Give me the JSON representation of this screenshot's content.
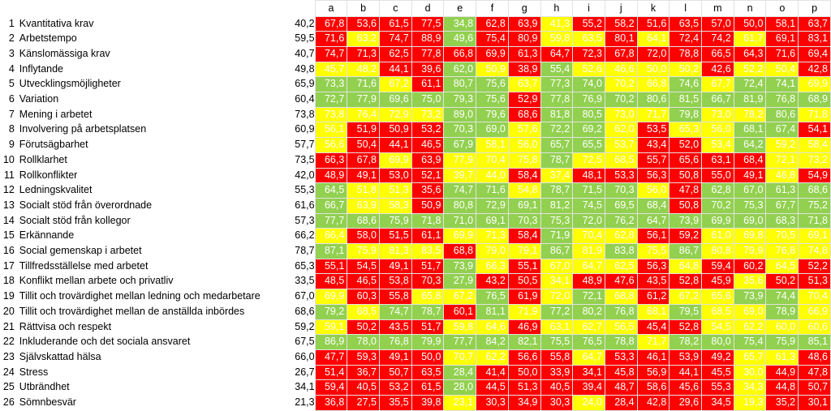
{
  "columns": [
    "a",
    "b",
    "c",
    "d",
    "e",
    "f",
    "g",
    "h",
    "i",
    "j",
    "k",
    "l",
    "m",
    "n",
    "o",
    "p"
  ],
  "rows": [
    {
      "num": "1",
      "label": "Kvantitativa krav",
      "total": "40,2",
      "vals": [
        "67,8",
        "53,6",
        "61,5",
        "77,5",
        "34,8",
        "62,8",
        "63,9",
        "41,3",
        "55,2",
        "58,2",
        "51,6",
        "63,5",
        "57,0",
        "50,0",
        "58,1",
        "63,7"
      ],
      "colors": [
        "r",
        "r",
        "r",
        "r",
        "g",
        "r",
        "r",
        "y",
        "r",
        "r",
        "r",
        "r",
        "r",
        "r",
        "r",
        "r"
      ]
    },
    {
      "num": "2",
      "label": "Arbetstempo",
      "total": "59,5",
      "vals": [
        "71,6",
        "63,2",
        "74,7",
        "88,9",
        "49,6",
        "75,4",
        "80,9",
        "59,8",
        "63,5",
        "80,1",
        "64,1",
        "72,4",
        "74,2",
        "61,7",
        "69,1",
        "83,1"
      ],
      "colors": [
        "r",
        "y",
        "r",
        "r",
        "g",
        "r",
        "r",
        "y",
        "y",
        "r",
        "y",
        "r",
        "r",
        "y",
        "r",
        "r"
      ]
    },
    {
      "num": "3",
      "label": "Känslomässiga krav",
      "total": "40,7",
      "vals": [
        "74,7",
        "71,3",
        "62,5",
        "77,8",
        "66,8",
        "69,9",
        "61,3",
        "64,7",
        "72,3",
        "67,8",
        "72,0",
        "78,8",
        "66,5",
        "64,3",
        "71,6",
        "69,4"
      ],
      "colors": [
        "r",
        "r",
        "r",
        "r",
        "r",
        "r",
        "r",
        "r",
        "r",
        "r",
        "r",
        "r",
        "r",
        "r",
        "r",
        "r"
      ]
    },
    {
      "num": "4",
      "label": "Inflytande",
      "total": "49,8",
      "vals": [
        "45,7",
        "48,2",
        "44,1",
        "39,6",
        "62,0",
        "50,9",
        "38,9",
        "55,4",
        "52,6",
        "46,6",
        "50,0",
        "50,2",
        "42,6",
        "52,2",
        "50,4",
        "42,8"
      ],
      "colors": [
        "y",
        "y",
        "r",
        "r",
        "g",
        "y",
        "r",
        "g",
        "y",
        "y",
        "y",
        "y",
        "r",
        "y",
        "y",
        "r"
      ]
    },
    {
      "num": "5",
      "label": "Utvecklingsmöjligheter",
      "total": "65,9",
      "vals": [
        "73,3",
        "71,6",
        "67,2",
        "61,1",
        "80,7",
        "75,6",
        "63,7",
        "77,3",
        "74,0",
        "70,2",
        "66,8",
        "74,6",
        "67,7",
        "72,4",
        "74,1",
        "69,9"
      ],
      "colors": [
        "g",
        "g",
        "y",
        "r",
        "g",
        "g",
        "y",
        "g",
        "g",
        "y",
        "y",
        "g",
        "y",
        "g",
        "g",
        "y"
      ]
    },
    {
      "num": "6",
      "label": "Variation",
      "total": "60,4",
      "vals": [
        "72,7",
        "77,9",
        "69,6",
        "75,0",
        "79,3",
        "75,6",
        "52,9",
        "77,8",
        "76,9",
        "70,2",
        "80,6",
        "81,5",
        "66,7",
        "81,9",
        "76,8",
        "68,9"
      ],
      "colors": [
        "g",
        "g",
        "g",
        "g",
        "g",
        "g",
        "r",
        "g",
        "g",
        "g",
        "g",
        "g",
        "g",
        "g",
        "g",
        "g"
      ]
    },
    {
      "num": "7",
      "label": "Mening i arbetet",
      "total": "73,8",
      "vals": [
        "73,8",
        "76,4",
        "72,9",
        "73,2",
        "89,0",
        "79,6",
        "68,6",
        "81,8",
        "80,5",
        "73,0",
        "71,7",
        "79,8",
        "73,0",
        "78,2",
        "80,6",
        "71,8"
      ],
      "colors": [
        "y",
        "y",
        "y",
        "y",
        "g",
        "g",
        "r",
        "g",
        "g",
        "y",
        "y",
        "g",
        "y",
        "y",
        "g",
        "y"
      ]
    },
    {
      "num": "8",
      "label": "Involvering på arbetsplatsen",
      "total": "60,9",
      "vals": [
        "56,1",
        "51,9",
        "50,9",
        "53,2",
        "70,3",
        "69,0",
        "57,6",
        "72,2",
        "69,2",
        "62,0",
        "53,5",
        "65,3",
        "56,0",
        "68,1",
        "67,4",
        "54,1"
      ],
      "colors": [
        "y",
        "r",
        "r",
        "r",
        "g",
        "g",
        "y",
        "g",
        "g",
        "y",
        "r",
        "y",
        "y",
        "g",
        "g",
        "r"
      ]
    },
    {
      "num": "9",
      "label": "Förutsägbarhet",
      "total": "57,7",
      "vals": [
        "56,6",
        "50,4",
        "44,1",
        "46,5",
        "67,9",
        "58,1",
        "56,0",
        "65,7",
        "65,5",
        "53,7",
        "43,4",
        "52,0",
        "53,4",
        "64,2",
        "59,2",
        "58,4"
      ],
      "colors": [
        "y",
        "r",
        "r",
        "r",
        "g",
        "y",
        "y",
        "g",
        "g",
        "y",
        "r",
        "r",
        "y",
        "g",
        "y",
        "y"
      ]
    },
    {
      "num": "10",
      "label": "Rollklarhet",
      "total": "73,5",
      "vals": [
        "66,3",
        "67,8",
        "69,9",
        "63,9",
        "77,9",
        "70,4",
        "75,8",
        "78,7",
        "72,5",
        "68,5",
        "55,7",
        "65,6",
        "63,1",
        "68,4",
        "72,1",
        "73,2"
      ],
      "colors": [
        "r",
        "r",
        "y",
        "r",
        "y",
        "y",
        "y",
        "g",
        "y",
        "y",
        "r",
        "r",
        "r",
        "r",
        "y",
        "y"
      ]
    },
    {
      "num": "11",
      "label": "Rollkonflikter",
      "total": "42,0",
      "vals": [
        "48,9",
        "49,1",
        "53,0",
        "52,1",
        "39,7",
        "44,0",
        "58,4",
        "37,4",
        "48,1",
        "53,3",
        "56,3",
        "50,8",
        "55,0",
        "49,1",
        "46,8",
        "54,9"
      ],
      "colors": [
        "r",
        "r",
        "r",
        "r",
        "y",
        "y",
        "r",
        "y",
        "r",
        "r",
        "r",
        "r",
        "r",
        "r",
        "y",
        "r"
      ]
    },
    {
      "num": "12",
      "label": "Ledningskvalitet",
      "total": "55,3",
      "vals": [
        "64,5",
        "51,8",
        "51,3",
        "35,6",
        "74,7",
        "71,6",
        "54,8",
        "78,7",
        "71,5",
        "70,3",
        "56,0",
        "47,8",
        "62,8",
        "67,0",
        "61,3",
        "68,6"
      ],
      "colors": [
        "g",
        "y",
        "y",
        "r",
        "g",
        "g",
        "y",
        "g",
        "g",
        "g",
        "y",
        "r",
        "g",
        "g",
        "g",
        "g"
      ]
    },
    {
      "num": "13",
      "label": "Socialt stöd från överordnade",
      "total": "61,6",
      "vals": [
        "66,7",
        "63,9",
        "58,3",
        "50,9",
        "80,8",
        "72,9",
        "69,1",
        "81,2",
        "74,5",
        "69,5",
        "68,4",
        "50,8",
        "70,2",
        "75,3",
        "67,7",
        "75,2"
      ],
      "colors": [
        "g",
        "y",
        "y",
        "r",
        "g",
        "g",
        "g",
        "g",
        "g",
        "g",
        "g",
        "r",
        "g",
        "g",
        "g",
        "g"
      ]
    },
    {
      "num": "14",
      "label": "Socialt stöd från kollegor",
      "total": "57,3",
      "vals": [
        "77,7",
        "68,6",
        "75,9",
        "71,8",
        "71,0",
        "69,1",
        "70,3",
        "75,3",
        "72,0",
        "76,2",
        "64,7",
        "73,9",
        "69,9",
        "69,0",
        "68,3",
        "71,8"
      ],
      "colors": [
        "g",
        "g",
        "g",
        "g",
        "g",
        "g",
        "g",
        "g",
        "g",
        "g",
        "g",
        "g",
        "g",
        "g",
        "g",
        "g"
      ]
    },
    {
      "num": "15",
      "label": "Erkännande",
      "total": "66,2",
      "vals": [
        "66,4",
        "58,0",
        "51,5",
        "61,1",
        "69,9",
        "71,3",
        "58,4",
        "71,9",
        "70,4",
        "62,8",
        "56,1",
        "59,2",
        "61,0",
        "69,8",
        "70,5",
        "69,1"
      ],
      "colors": [
        "y",
        "r",
        "r",
        "r",
        "y",
        "y",
        "r",
        "g",
        "y",
        "y",
        "r",
        "r",
        "y",
        "y",
        "y",
        "y"
      ]
    },
    {
      "num": "16",
      "label": "Social gemenskap i arbetet",
      "total": "78,7",
      "vals": [
        "87,1",
        "75,9",
        "81,3",
        "83,5",
        "68,8",
        "79,0",
        "79,1",
        "86,7",
        "81,9",
        "83,8",
        "75,5",
        "86,7",
        "80,8",
        "79,9",
        "76,8",
        "74,8"
      ],
      "colors": [
        "g",
        "y",
        "y",
        "y",
        "r",
        "y",
        "y",
        "g",
        "y",
        "g",
        "y",
        "g",
        "y",
        "y",
        "y",
        "y"
      ]
    },
    {
      "num": "17",
      "label": "Tillfredsställelse med arbetet",
      "total": "65,3",
      "vals": [
        "55,1",
        "54,5",
        "49,1",
        "51,7",
        "73,9",
        "66,3",
        "55,1",
        "67,0",
        "64,7",
        "62,5",
        "56,3",
        "64,8",
        "59,4",
        "60,2",
        "64,5",
        "52,2"
      ],
      "colors": [
        "r",
        "r",
        "r",
        "r",
        "g",
        "y",
        "r",
        "y",
        "y",
        "y",
        "r",
        "y",
        "r",
        "r",
        "y",
        "r"
      ]
    },
    {
      "num": "18",
      "label": "Konflikt mellan arbete och privatliv",
      "total": "33,5",
      "vals": [
        "48,5",
        "46,5",
        "53,8",
        "70,3",
        "27,9",
        "43,2",
        "50,5",
        "34,1",
        "48,9",
        "47,6",
        "43,5",
        "52,8",
        "45,9",
        "35,6",
        "50,2",
        "51,3"
      ],
      "colors": [
        "r",
        "r",
        "r",
        "r",
        "g",
        "r",
        "r",
        "y",
        "r",
        "r",
        "r",
        "r",
        "r",
        "y",
        "r",
        "r"
      ]
    },
    {
      "num": "19",
      "label": "Tillit och trovärdighet mellan ledning och medarbetare",
      "total": "67,0",
      "vals": [
        "69,9",
        "60,3",
        "55,8",
        "65,8",
        "67,2",
        "76,5",
        "61,9",
        "72,0",
        "72,1",
        "68,8",
        "61,2",
        "67,2",
        "65,6",
        "73,9",
        "74,4",
        "70,4"
      ],
      "colors": [
        "y",
        "r",
        "r",
        "y",
        "y",
        "g",
        "r",
        "y",
        "g",
        "y",
        "r",
        "y",
        "y",
        "g",
        "g",
        "y"
      ]
    },
    {
      "num": "20",
      "label": "Tillit och trovärdighet mellan de anställda inbördes",
      "total": "68,6",
      "vals": [
        "79,2",
        "68,5",
        "74,7",
        "78,7",
        "60,1",
        "81,1",
        "71,9",
        "77,2",
        "80,2",
        "76,8",
        "68,1",
        "79,5",
        "68,5",
        "69,0",
        "78,9",
        "66,9"
      ],
      "colors": [
        "g",
        "y",
        "g",
        "g",
        "r",
        "g",
        "y",
        "g",
        "g",
        "g",
        "y",
        "g",
        "y",
        "y",
        "g",
        "y"
      ]
    },
    {
      "num": "21",
      "label": "Rättvisa och respekt",
      "total": "59,2",
      "vals": [
        "59,1",
        "50,2",
        "43,5",
        "51,7",
        "59,8",
        "64,6",
        "46,9",
        "63,1",
        "62,7",
        "56,5",
        "45,4",
        "52,8",
        "54,5",
        "62,2",
        "60,0",
        "60,6"
      ],
      "colors": [
        "y",
        "r",
        "r",
        "r",
        "y",
        "y",
        "r",
        "y",
        "y",
        "y",
        "r",
        "r",
        "y",
        "y",
        "y",
        "y"
      ]
    },
    {
      "num": "22",
      "label": "Inkluderande och det sociala ansvaret",
      "total": "67,5",
      "vals": [
        "86,9",
        "78,0",
        "76,8",
        "79,9",
        "77,7",
        "84,2",
        "82,1",
        "75,5",
        "76,5",
        "78,8",
        "71,7",
        "78,2",
        "80,0",
        "75,4",
        "75,9",
        "85,1"
      ],
      "colors": [
        "g",
        "g",
        "g",
        "g",
        "g",
        "g",
        "g",
        "g",
        "g",
        "g",
        "y",
        "g",
        "g",
        "g",
        "g",
        "g"
      ]
    },
    {
      "num": "23",
      "label": "Självskattad hälsa",
      "total": "66,0",
      "vals": [
        "47,7",
        "59,3",
        "49,1",
        "50,0",
        "70,7",
        "62,2",
        "56,6",
        "55,8",
        "64,7",
        "53,3",
        "46,1",
        "53,9",
        "49,2",
        "65,7",
        "61,3",
        "48,6"
      ],
      "colors": [
        "r",
        "r",
        "r",
        "r",
        "y",
        "y",
        "r",
        "r",
        "y",
        "r",
        "r",
        "r",
        "r",
        "y",
        "y",
        "r"
      ]
    },
    {
      "num": "24",
      "label": "Stress",
      "total": "26,7",
      "vals": [
        "51,4",
        "36,7",
        "50,7",
        "63,5",
        "28,4",
        "41,4",
        "50,0",
        "33,9",
        "34,1",
        "45,8",
        "56,9",
        "44,1",
        "45,5",
        "30,0",
        "44,9",
        "47,8"
      ],
      "colors": [
        "r",
        "r",
        "r",
        "r",
        "g",
        "r",
        "r",
        "r",
        "r",
        "r",
        "r",
        "r",
        "r",
        "y",
        "r",
        "r"
      ]
    },
    {
      "num": "25",
      "label": "Utbrändhet",
      "total": "34,1",
      "vals": [
        "59,4",
        "40,5",
        "53,2",
        "61,5",
        "28,0",
        "44,5",
        "51,3",
        "40,5",
        "39,4",
        "48,7",
        "58,6",
        "45,6",
        "55,3",
        "34,3",
        "44,8",
        "50,7"
      ],
      "colors": [
        "r",
        "r",
        "r",
        "r",
        "g",
        "r",
        "r",
        "r",
        "r",
        "r",
        "r",
        "r",
        "r",
        "y",
        "r",
        "r"
      ]
    },
    {
      "num": "26",
      "label": "Sömnbesvär",
      "total": "21,3",
      "vals": [
        "36,8",
        "27,5",
        "35,5",
        "39,8",
        "23,1",
        "30,3",
        "34,9",
        "30,3",
        "24,0",
        "28,4",
        "42,8",
        "29,6",
        "34,5",
        "19,3",
        "35,2",
        "30,1"
      ],
      "colors": [
        "r",
        "r",
        "r",
        "r",
        "y",
        "r",
        "r",
        "r",
        "y",
        "r",
        "r",
        "r",
        "r",
        "y",
        "r",
        "r"
      ]
    }
  ]
}
